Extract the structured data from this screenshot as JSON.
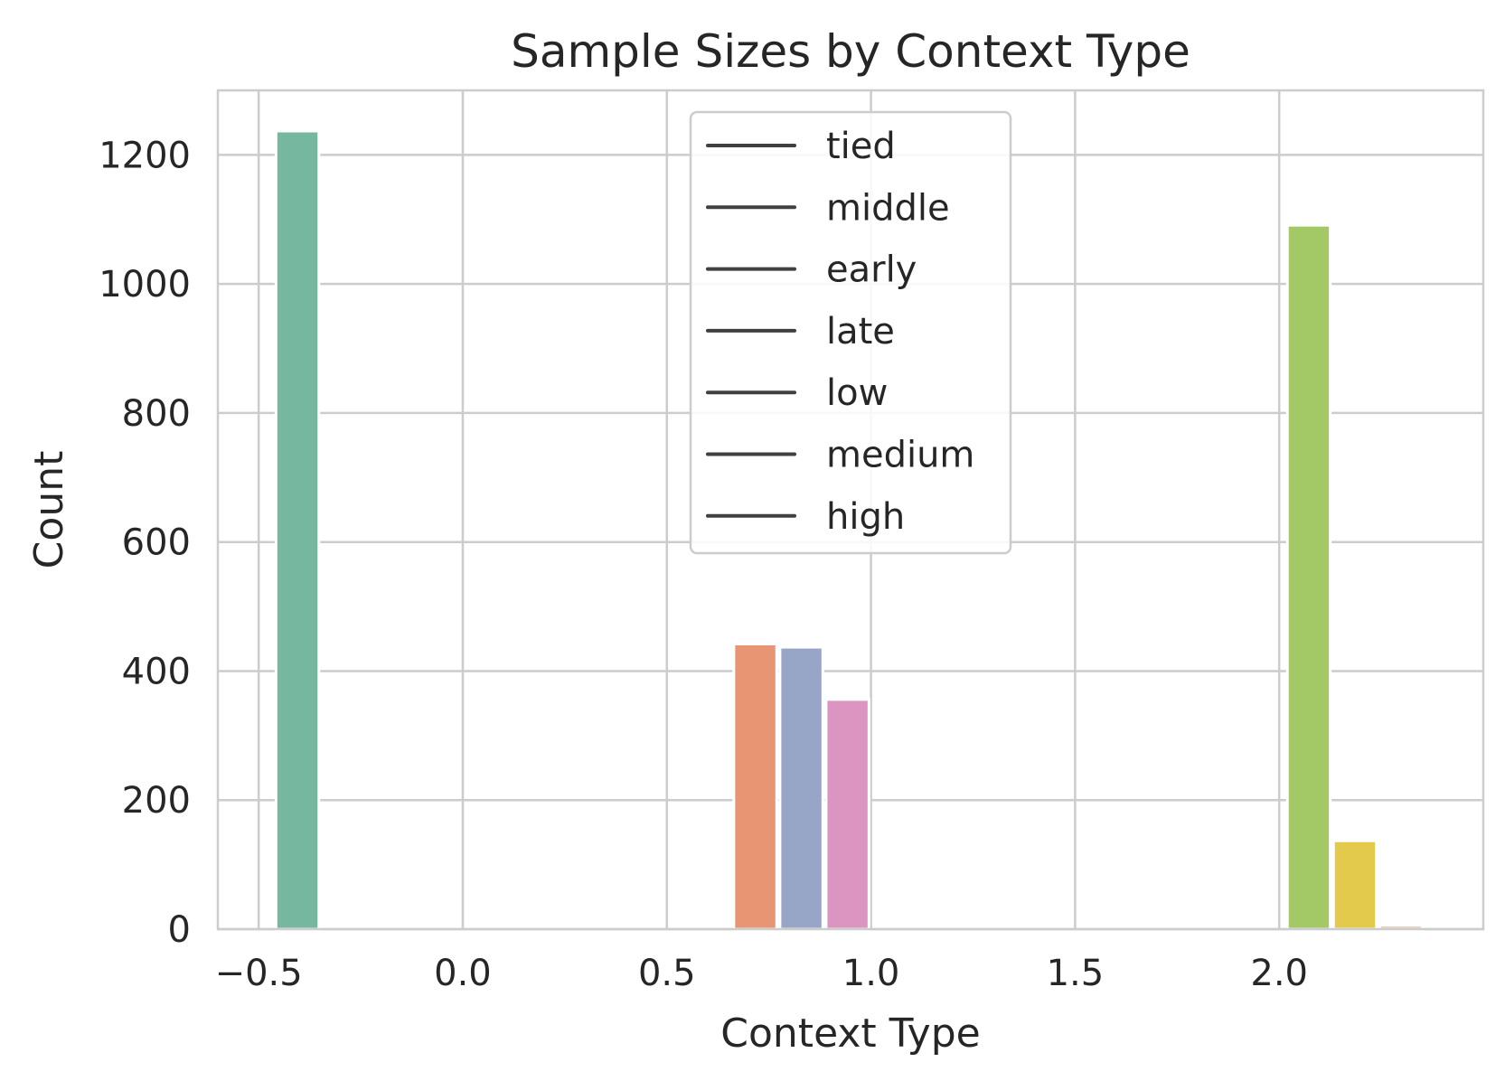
{
  "chart_data": {
    "type": "bar",
    "title": "Sample Sizes by Context Type",
    "xlabel": "Context Type",
    "ylabel": "Count",
    "xlim": [
      -0.6,
      2.5
    ],
    "ylim": [
      0,
      1300
    ],
    "xticks": [
      -0.5,
      0.0,
      0.5,
      1.0,
      1.5,
      2.0
    ],
    "xtick_labels": [
      "−0.5",
      "0.0",
      "0.5",
      "1.0",
      "1.5",
      "2.0"
    ],
    "yticks": [
      0,
      200,
      400,
      600,
      800,
      1000,
      1200
    ],
    "ytick_labels": [
      "0",
      "200",
      "400",
      "600",
      "800",
      "1000",
      "1200"
    ],
    "grid": true,
    "legend_position": "upper-center",
    "legend_style": "line",
    "legend_line_color": "#404040",
    "series": [
      {
        "name": "tied",
        "x": -0.405,
        "width": 0.105,
        "value": 1237,
        "color": "#76b7a0"
      },
      {
        "name": "middle",
        "x": 0.7165,
        "width": 0.105,
        "value": 442,
        "color": "#e89573"
      },
      {
        "name": "early",
        "x": 0.8295,
        "width": 0.105,
        "value": 437,
        "color": "#97a6c6"
      },
      {
        "name": "late",
        "x": 0.9425,
        "width": 0.105,
        "value": 356,
        "color": "#dc95c0"
      },
      {
        "name": "low",
        "x": 2.0725,
        "width": 0.105,
        "value": 1091,
        "color": "#a3c866"
      },
      {
        "name": "medium",
        "x": 2.1855,
        "width": 0.105,
        "value": 137,
        "color": "#e3ca4c"
      },
      {
        "name": "high",
        "x": 2.2985,
        "width": 0.105,
        "value": 6,
        "color": "#e1c4a6"
      }
    ]
  }
}
